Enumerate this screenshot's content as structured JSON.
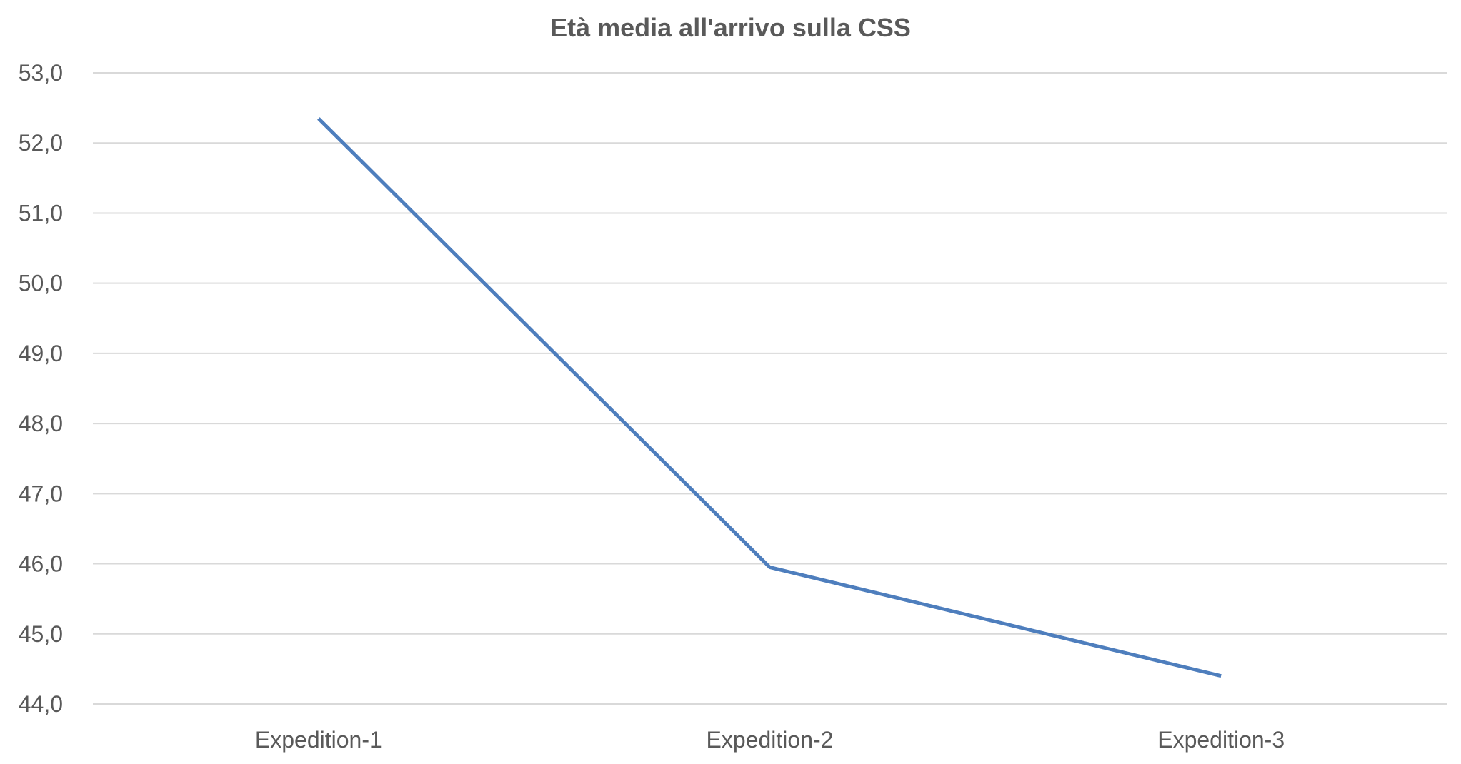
{
  "chart_data": {
    "type": "line",
    "title": "Età media all'arrivo sulla CSS",
    "categories": [
      "Expedition-1",
      "Expedition-2",
      "Expedition-3"
    ],
    "series": [
      {
        "values": [
          52.35,
          45.95,
          44.4
        ],
        "color": "#4e7ebd"
      }
    ],
    "ylim": [
      44.0,
      53.0
    ],
    "yticks": [
      "44,0",
      "45,0",
      "46,0",
      "47,0",
      "48,0",
      "49,0",
      "50,0",
      "51,0",
      "52,0",
      "53,0"
    ],
    "grid": true,
    "legend": "none"
  }
}
